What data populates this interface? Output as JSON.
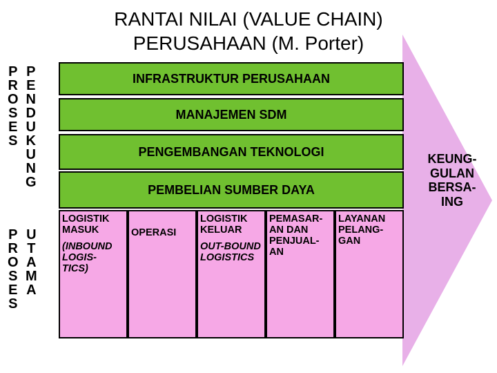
{
  "title_line1": "RANTAI NILAI (VALUE CHAIN)",
  "title_line2": "PERUSAHAAN (M. Porter)",
  "side_labels": {
    "proses1": "PROSES",
    "pendukung": "PENDUKUNG",
    "proses2": "PROSES",
    "utama": "UTAMA"
  },
  "support": {
    "s1": "INFRASTRUKTUR PERUSAHAAN",
    "s2": "MANAJEMEN SDM",
    "s3": "PENGEMBANGAN TEKNOLOGI",
    "s4": "PEMBELIAN SUMBER DAYA"
  },
  "primary": {
    "p1": {
      "main": "LOGISTIK MASUK",
      "sub": "(INBOUND LOGIS- TICS)"
    },
    "p2": {
      "main": "OPERASI"
    },
    "p3": {
      "main": "LOGISTIK KELUAR",
      "sub": "OUT-BOUND LOGISTICS"
    },
    "p4": {
      "main": "PEMASAR- AN DAN PENJUAL- AN"
    },
    "p5": {
      "main": "LAYANAN PELANG- GAN"
    }
  },
  "margin": "KEUNG- GULAN BERSA- ING",
  "colors": {
    "support_fill": "#70c030",
    "primary_fill": "#f6a8e6",
    "arrow_head": "#e8b0e8",
    "border": "#000000",
    "background": "#ffffff"
  },
  "layout": {
    "support_heights": [
      48,
      48,
      52,
      58
    ],
    "support_tops": [
      0,
      52,
      104,
      158
    ],
    "primary_widths": [
      100,
      100,
      100,
      100,
      100
    ],
    "primary_lefts": [
      0,
      100,
      200,
      300,
      400
    ],
    "arrow_body_width": 500,
    "arrow_body_height": 400,
    "arrow_head_border": 240,
    "arrow_head_width": 130
  },
  "typography": {
    "title_size": 28,
    "band_size": 18,
    "primary_size": 14.5,
    "vlabel_size": 20,
    "margin_size": 18
  }
}
